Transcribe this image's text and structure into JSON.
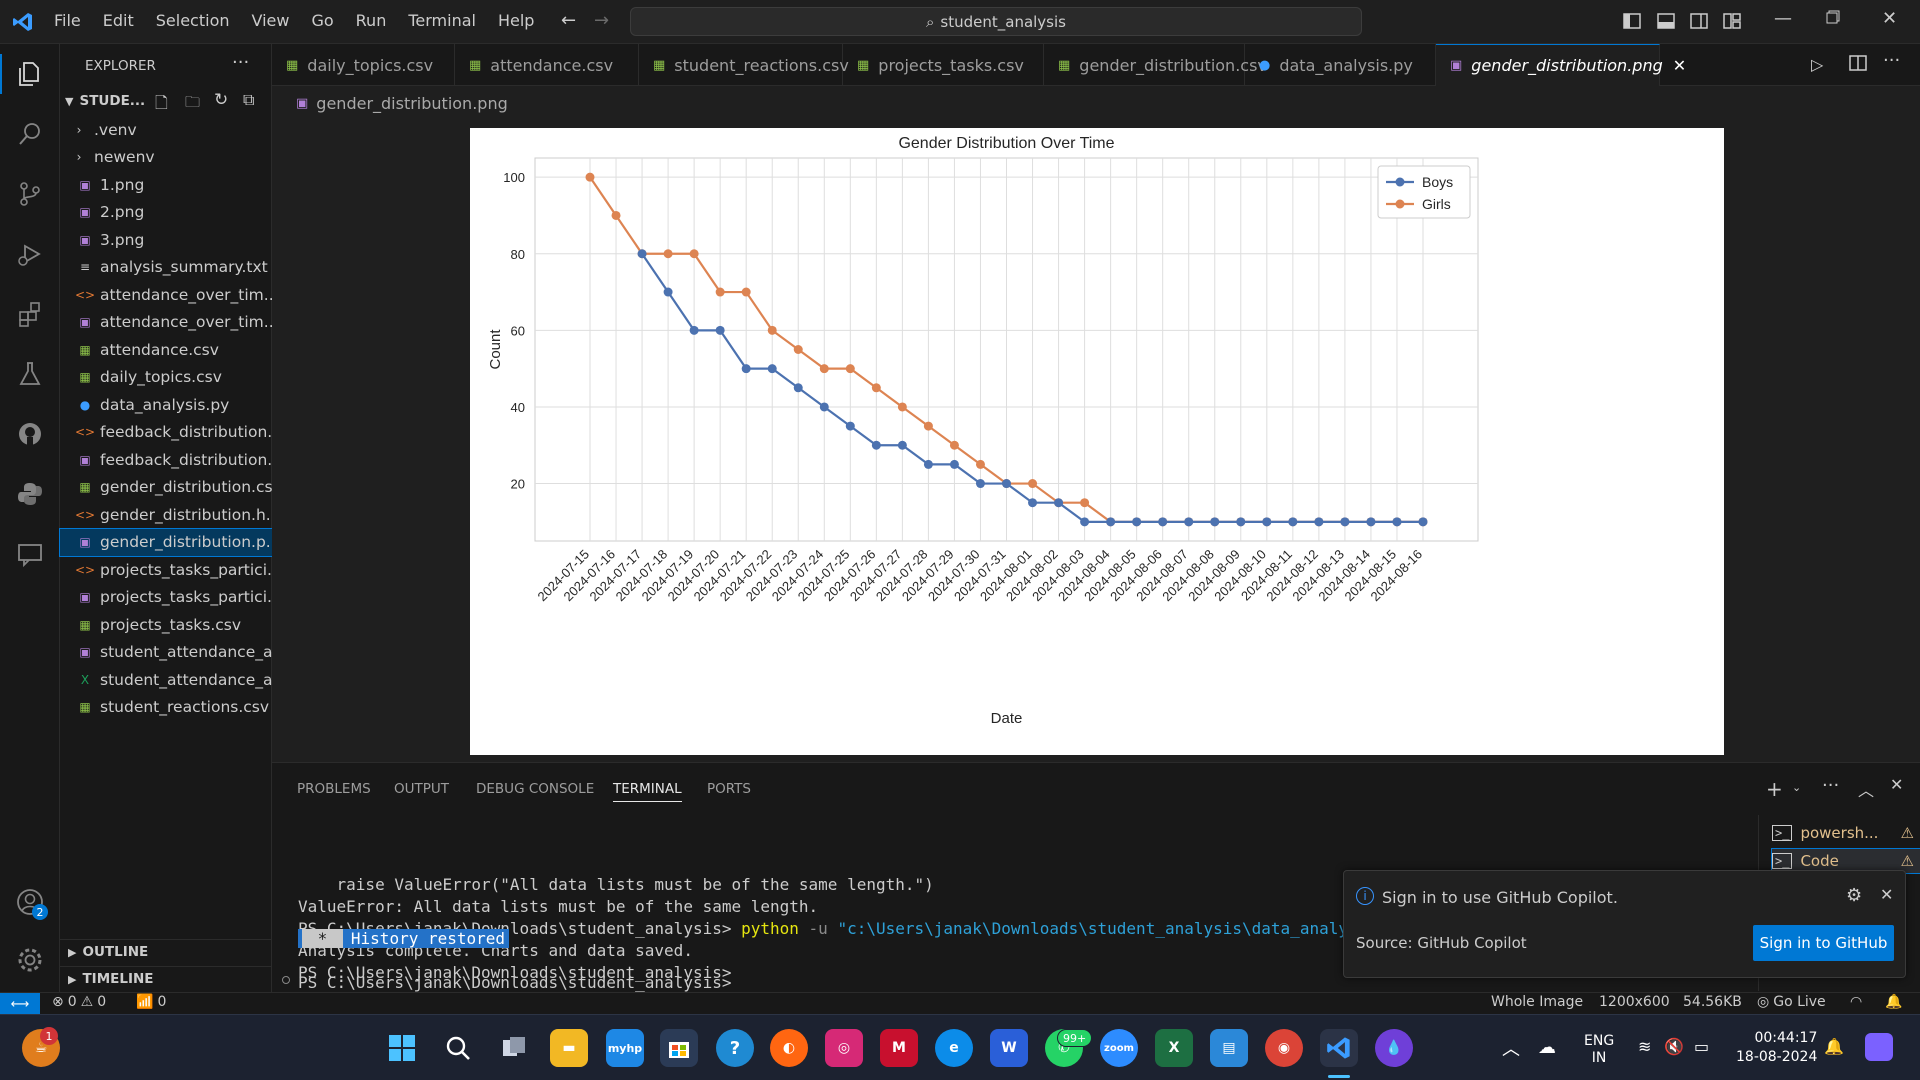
{
  "window": {
    "menu": [
      "File",
      "Edit",
      "Selection",
      "View",
      "Go",
      "Run",
      "Terminal",
      "Help"
    ],
    "search_text": "student_analysis"
  },
  "sidebar": {
    "title": "EXPLORER",
    "folder": "STUDE...",
    "items": [
      {
        "label": ".venv",
        "kind": "folder"
      },
      {
        "label": "newenv",
        "kind": "folder"
      },
      {
        "label": "1.png",
        "kind": "image"
      },
      {
        "label": "2.png",
        "kind": "image"
      },
      {
        "label": "3.png",
        "kind": "image"
      },
      {
        "label": "analysis_summary.txt",
        "kind": "text"
      },
      {
        "label": "attendance_over_tim...",
        "kind": "html"
      },
      {
        "label": "attendance_over_tim...",
        "kind": "image"
      },
      {
        "label": "attendance.csv",
        "kind": "csv"
      },
      {
        "label": "daily_topics.csv",
        "kind": "csv"
      },
      {
        "label": "data_analysis.py",
        "kind": "python"
      },
      {
        "label": "feedback_distribution...",
        "kind": "html"
      },
      {
        "label": "feedback_distribution...",
        "kind": "image"
      },
      {
        "label": "gender_distribution.csv",
        "kind": "csv"
      },
      {
        "label": "gender_distribution.h...",
        "kind": "html"
      },
      {
        "label": "gender_distribution.p...",
        "kind": "image",
        "selected": true
      },
      {
        "label": "projects_tasks_partici...",
        "kind": "html"
      },
      {
        "label": "projects_tasks_partici...",
        "kind": "image"
      },
      {
        "label": "projects_tasks.csv",
        "kind": "csv"
      },
      {
        "label": "student_attendance_a...",
        "kind": "image"
      },
      {
        "label": "student_attendance_a...",
        "kind": "excel"
      },
      {
        "label": "student_reactions.csv",
        "kind": "csv"
      }
    ],
    "outline": "OUTLINE",
    "timeline": "TIMELINE"
  },
  "tabs": [
    {
      "label": "daily_topics.csv",
      "kind": "csv"
    },
    {
      "label": "attendance.csv",
      "kind": "csv"
    },
    {
      "label": "student_reactions.csv",
      "kind": "csv"
    },
    {
      "label": "projects_tasks.csv",
      "kind": "csv"
    },
    {
      "label": "gender_distribution.csv",
      "kind": "csv"
    },
    {
      "label": "data_analysis.py",
      "kind": "python"
    },
    {
      "label": "gender_distribution.png",
      "kind": "image",
      "active": true
    }
  ],
  "breadcrumb": "gender_distribution.png",
  "chart_data": {
    "type": "line",
    "title": "Gender Distribution Over Time",
    "xlabel": "Date",
    "ylabel": "Count",
    "x": [
      "2024-07-15",
      "2024-07-16",
      "2024-07-17",
      "2024-07-18",
      "2024-07-19",
      "2024-07-20",
      "2024-07-21",
      "2024-07-22",
      "2024-07-23",
      "2024-07-24",
      "2024-07-25",
      "2024-07-26",
      "2024-07-27",
      "2024-07-28",
      "2024-07-29",
      "2024-07-30",
      "2024-07-31",
      "2024-08-01",
      "2024-08-02",
      "2024-08-03",
      "2024-08-04",
      "2024-08-05",
      "2024-08-06",
      "2024-08-07",
      "2024-08-08",
      "2024-08-09",
      "2024-08-10",
      "2024-08-11",
      "2024-08-12",
      "2024-08-13",
      "2024-08-14",
      "2024-08-15",
      "2024-08-16"
    ],
    "series": [
      {
        "name": "Boys",
        "color": "#4c72b0",
        "values": [
          null,
          null,
          80,
          70,
          60,
          60,
          50,
          50,
          45,
          40,
          35,
          30,
          30,
          25,
          25,
          20,
          20,
          15,
          15,
          10,
          10,
          10,
          10,
          10,
          10,
          10,
          10,
          10,
          10,
          10,
          10,
          10,
          10
        ]
      },
      {
        "name": "Girls",
        "color": "#dd8452",
        "values": [
          100,
          90,
          80,
          80,
          80,
          70,
          70,
          60,
          55,
          50,
          50,
          45,
          40,
          35,
          30,
          25,
          20,
          20,
          15,
          15,
          10,
          10,
          10,
          10,
          10,
          10,
          10,
          10,
          10,
          10,
          10,
          10,
          10
        ]
      }
    ],
    "yticks": [
      20,
      40,
      60,
      80,
      100
    ],
    "ylim": [
      5,
      105
    ],
    "grid": true,
    "legend": "top-right"
  },
  "panel": {
    "tabs": [
      "PROBLEMS",
      "OUTPUT",
      "DEBUG CONSOLE",
      "TERMINAL",
      "PORTS"
    ],
    "active_tab": "TERMINAL",
    "terminal": {
      "line1": "    raise ValueError(\"All data lists must be of the same length.\")",
      "line2": "ValueError: All data lists must be of the same length.",
      "line3_prompt": "PS C:\\Users\\janak\\Downloads\\student_analysis> ",
      "line3_cmd": "python",
      "line3_flag": " -u ",
      "line3_path": "\"c:\\Users\\janak\\Downloads\\student_analysis\\data_analysis.py\"",
      "line4": "Analysis complete. Charts and data saved.",
      "line5": "PS C:\\Users\\janak\\Downloads\\student_analysis>",
      "history": "History restored",
      "line6": "PS C:\\Users\\janak\\Downloads\\student_analysis>"
    },
    "terminals": [
      "powersh...",
      "Code"
    ]
  },
  "notification": {
    "message": "Sign in to use GitHub Copilot.",
    "source": "Source: GitHub Copilot",
    "button": "Sign in to GitHub"
  },
  "status": {
    "errors": "0",
    "warnings": "0",
    "ports": "0",
    "image_scope": "Whole Image",
    "dimensions": "1200x600",
    "size": "54.56KB",
    "golive": "Go Live"
  },
  "taskbar": {
    "lang": "ENG",
    "region": "IN",
    "time": "00:44:17",
    "date": "18-08-2024",
    "whatsapp_badge": "99+",
    "app_badge": "1",
    "account_badge": "2"
  }
}
